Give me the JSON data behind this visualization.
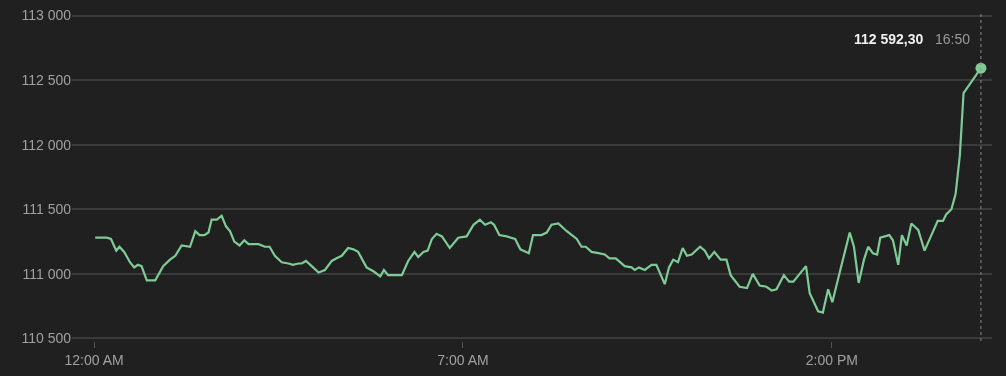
{
  "chart_data": {
    "type": "line",
    "x": [
      0.02,
      0.11,
      0.24,
      0.32,
      0.42,
      0.48,
      0.57,
      0.68,
      0.76,
      0.83,
      0.9,
      1.0,
      1.16,
      1.31,
      1.44,
      1.54,
      1.66,
      1.82,
      1.92,
      2.0,
      2.09,
      2.17,
      2.23,
      2.33,
      2.42,
      2.5,
      2.58,
      2.66,
      2.76,
      2.85,
      2.93,
      3.12,
      3.24,
      3.33,
      3.43,
      3.56,
      3.69,
      3.77,
      3.88,
      3.94,
      4.02,
      4.13,
      4.26,
      4.38,
      4.51,
      4.6,
      4.7,
      4.82,
      4.92,
      5.01,
      5.17,
      5.3,
      5.43,
      5.5,
      5.58,
      5.84,
      5.96,
      6.08,
      6.15,
      6.25,
      6.33,
      6.41,
      6.5,
      6.6,
      6.75,
      6.91,
      7.07,
      7.2,
      7.32,
      7.42,
      7.53,
      7.59,
      7.69,
      7.83,
      7.99,
      8.09,
      8.25,
      8.33,
      8.49,
      8.59,
      8.68,
      8.81,
      8.97,
      9.16,
      9.25,
      9.33,
      9.44,
      9.57,
      9.69,
      9.78,
      9.9,
      10.07,
      10.2,
      10.26,
      10.34,
      10.45,
      10.58,
      10.67,
      10.83,
      10.91,
      10.99,
      11.08,
      11.17,
      11.25,
      11.34,
      11.5,
      11.59,
      11.67,
      11.77,
      11.89,
      12.0,
      12.08,
      12.25,
      12.39,
      12.5,
      12.63,
      12.76,
      12.86,
      12.95,
      13.09,
      13.19,
      13.27,
      13.39,
      13.51,
      13.58,
      13.74,
      13.83,
      13.93,
      14.01,
      14.18,
      14.34,
      14.42,
      14.51,
      14.61,
      14.69,
      14.78,
      14.86,
      14.92,
      15.09,
      15.16,
      15.26,
      15.33,
      15.42,
      15.51,
      15.64,
      15.76,
      16.01,
      16.11,
      16.17,
      16.27,
      16.35,
      16.43,
      16.5,
      16.83
    ],
    "series": [
      {
        "color": "#7ecb95",
        "values": [
          111280,
          111280,
          111280,
          111270,
          111180,
          111210,
          111170,
          111090,
          111050,
          111070,
          111060,
          110950,
          110950,
          111060,
          111110,
          111140,
          111220,
          111210,
          111330,
          111300,
          111300,
          111320,
          111420,
          111420,
          111450,
          111370,
          111330,
          111250,
          111220,
          111260,
          111230,
          111230,
          111210,
          111210,
          111140,
          111090,
          111080,
          111070,
          111080,
          111080,
          111100,
          111060,
          111010,
          111030,
          111100,
          111120,
          111140,
          111200,
          111190,
          111170,
          111050,
          111020,
          110980,
          111030,
          110990,
          110990,
          111100,
          111170,
          111130,
          111170,
          111180,
          111270,
          111310,
          111290,
          111200,
          111280,
          111290,
          111380,
          111420,
          111380,
          111400,
          111380,
          111300,
          111290,
          111270,
          111190,
          111160,
          111300,
          111300,
          111320,
          111380,
          111390,
          111330,
          111270,
          111210,
          111210,
          111170,
          111160,
          111150,
          111120,
          111120,
          111060,
          111050,
          111030,
          111050,
          111030,
          111070,
          111070,
          110920,
          111050,
          111110,
          111090,
          111200,
          111140,
          111150,
          111210,
          111180,
          111120,
          111170,
          111110,
          111110,
          110990,
          110900,
          110890,
          111000,
          110910,
          110900,
          110870,
          110880,
          110990,
          110940,
          110940,
          111000,
          111060,
          110850,
          110710,
          110700,
          110880,
          110780,
          111060,
          111320,
          111210,
          110930,
          111110,
          111210,
          111160,
          111150,
          111280,
          111300,
          111260,
          111070,
          111300,
          111220,
          111390,
          111340,
          111180,
          111410,
          111410,
          111460,
          111500,
          111620,
          111920,
          112400,
          112592.3
        ]
      }
    ],
    "xlim": [
      -0.42,
      17.04
    ],
    "xticks": [
      {
        "value": 0,
        "label": "12:00 AM"
      },
      {
        "value": 7,
        "label": "7:00 AM"
      },
      {
        "value": 14,
        "label": "2:00 PM"
      }
    ],
    "ylim": [
      110480,
      113020
    ],
    "yticks": [
      {
        "value": 110500,
        "label": "110 500"
      },
      {
        "value": 111000,
        "label": "111 000"
      },
      {
        "value": 111500,
        "label": "111 500"
      },
      {
        "value": 112000,
        "label": "112 000"
      },
      {
        "value": 112500,
        "label": "112 500"
      },
      {
        "value": 113000,
        "label": "113 000"
      }
    ],
    "grid": "y",
    "ref_lines": [
      {
        "axis": "x",
        "value": 16.83,
        "color": "#8a8a8a",
        "line_style": "dotted"
      }
    ],
    "annotations": [
      "112 592,30",
      "16:50"
    ]
  }
}
